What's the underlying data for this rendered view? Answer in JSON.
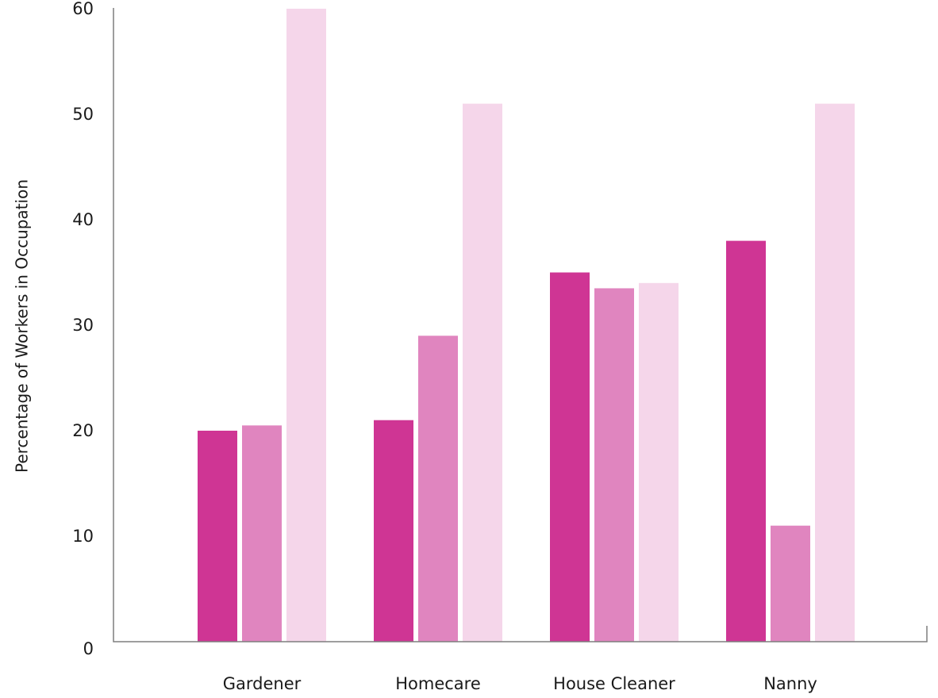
{
  "chart_data": {
    "type": "bar",
    "title": "",
    "xlabel": "",
    "ylabel": "Percentage of Workers in Occupation",
    "categories": [
      "Gardener",
      "Homecare",
      "House Cleaner",
      "Nanny"
    ],
    "series": [
      {
        "values": [
          20,
          21,
          35,
          38
        ],
        "color": "#cf3594"
      },
      {
        "values": [
          20.5,
          29,
          33.5,
          11
        ],
        "color": "#e085bf"
      },
      {
        "values": [
          60,
          51,
          34,
          51
        ],
        "color": "#f5d6ea"
      }
    ],
    "ylim": [
      0,
      60
    ],
    "yticks": [
      0,
      10,
      20,
      30,
      40,
      50,
      60
    ],
    "grid": false,
    "legend": "none"
  }
}
